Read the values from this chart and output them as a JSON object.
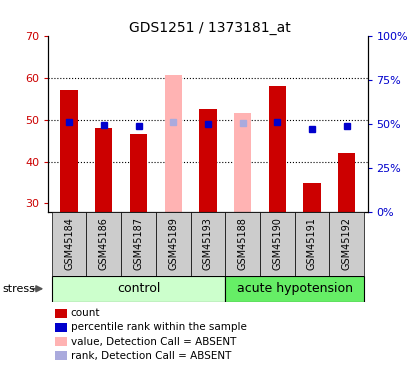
{
  "title": "GDS1251 / 1373181_at",
  "samples": [
    "GSM45184",
    "GSM45186",
    "GSM45187",
    "GSM45189",
    "GSM45193",
    "GSM45188",
    "GSM45190",
    "GSM45191",
    "GSM45192"
  ],
  "bar_values": [
    57,
    48,
    46.5,
    null,
    52.5,
    null,
    58,
    35,
    42
  ],
  "bar_absent_values": [
    null,
    null,
    null,
    60.5,
    null,
    51.5,
    null,
    null,
    null
  ],
  "dot_values": [
    51,
    49.5,
    49,
    null,
    50,
    null,
    51,
    47,
    48.5
  ],
  "dot_absent_values": [
    null,
    null,
    null,
    51,
    null,
    50.5,
    null,
    null,
    null
  ],
  "ylim_left": [
    28,
    70
  ],
  "ylim_right": [
    0,
    100
  ],
  "yticks_left": [
    30,
    40,
    50,
    60,
    70
  ],
  "yticks_right": [
    0,
    25,
    50,
    75,
    100
  ],
  "ytick_labels_right": [
    "0%",
    "25%",
    "50%",
    "75%",
    "100%"
  ],
  "bar_color": "#cc0000",
  "bar_absent_color": "#ffb3b3",
  "dot_color": "#0000cc",
  "dot_absent_color": "#aaaadd",
  "control_color": "#ccffcc",
  "acute_color": "#66ee66",
  "sample_bg_color": "#cccccc",
  "left_tick_color": "#cc0000",
  "right_tick_color": "#0000cc",
  "bar_width": 0.5,
  "n_control": 5,
  "n_acute": 4
}
